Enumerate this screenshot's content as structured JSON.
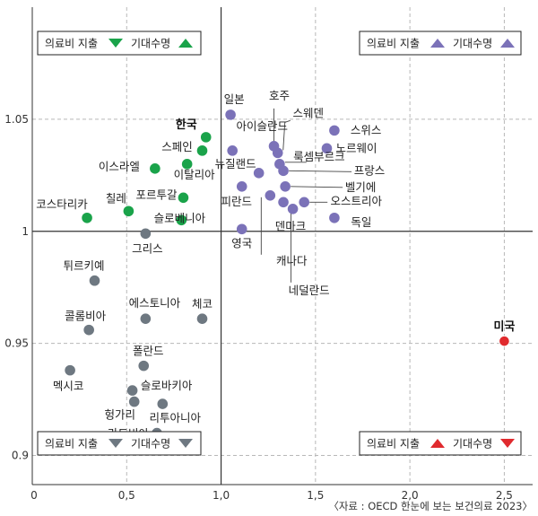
{
  "chart_data": {
    "type": "scatter",
    "xlim": [
      0,
      2.65
    ],
    "ylim": [
      0.887,
      1.1
    ],
    "x_ticks": [
      "0",
      "0,5",
      "1,0",
      "1,5",
      "2,0",
      "2,5"
    ],
    "x_tick_values": [
      0,
      0.5,
      1.0,
      1.5,
      2.0,
      2.5
    ],
    "y_ticks": [
      "0.9",
      "0.95",
      "1",
      "1.05"
    ],
    "y_tick_values": [
      0.9,
      0.95,
      1.0,
      1.05
    ],
    "center": {
      "x": 1.0,
      "y": 1.0
    },
    "grid": true,
    "colors": {
      "green": "#1aa34a",
      "purple": "#7b72b8",
      "gray": "#6e7881",
      "red": "#e02a2e",
      "grid": "#b8b8b8",
      "axis": "#333333"
    },
    "source": "〈자료 : OECD 한눈에 보는 보건의료 2023〉",
    "legends": [
      {
        "quadrant": "top-left",
        "spend_label": "의료비 지출",
        "spend_shape": "triangle-down",
        "life_label": "기대수명",
        "life_shape": "triangle-up",
        "color": "green"
      },
      {
        "quadrant": "top-right",
        "spend_label": "의료비 지출",
        "spend_shape": "triangle-up",
        "life_label": "기대수명",
        "life_shape": "triangle-up",
        "color": "purple"
      },
      {
        "quadrant": "bottom-left",
        "spend_label": "의료비 지출",
        "spend_shape": "triangle-down",
        "life_label": "기대수명",
        "life_shape": "triangle-down",
        "color": "gray"
      },
      {
        "quadrant": "bottom-right",
        "spend_label": "의료비 지출",
        "spend_shape": "triangle-up",
        "life_label": "기대수명",
        "life_shape": "triangle-down",
        "color": "red"
      }
    ],
    "series": [
      {
        "color": "green",
        "points": [
          {
            "label": "한국",
            "x": 0.92,
            "y": 1.042,
            "bold": true
          },
          {
            "label": "스페인",
            "x": 0.9,
            "y": 1.036
          },
          {
            "label": "이스라엘",
            "x": 0.65,
            "y": 1.028
          },
          {
            "label": "이탈리아",
            "x": 0.82,
            "y": 1.03
          },
          {
            "label": "포르투갈",
            "x": 0.8,
            "y": 1.015
          },
          {
            "label": "칠레",
            "x": 0.51,
            "y": 1.009
          },
          {
            "label": "코스타리카",
            "x": 0.29,
            "y": 1.006
          },
          {
            "label": "슬로베니아",
            "x": 0.79,
            "y": 1.005
          }
        ]
      },
      {
        "color": "purple",
        "points": [
          {
            "label": "일본",
            "x": 1.05,
            "y": 1.052
          },
          {
            "label": "호주",
            "x": 1.28,
            "y": 1.038
          },
          {
            "label": "스웨덴",
            "x": 1.3,
            "y": 1.035
          },
          {
            "label": "아이슬란드",
            "x": 1.06,
            "y": 1.036
          },
          {
            "label": "뉴질랜드",
            "x": 1.2,
            "y": 1.026
          },
          {
            "label": "룩셈부르크",
            "x": 1.31,
            "y": 1.03
          },
          {
            "label": "프랑스",
            "x": 1.33,
            "y": 1.027
          },
          {
            "label": "스위스",
            "x": 1.6,
            "y": 1.045
          },
          {
            "label": "노르웨이",
            "x": 1.56,
            "y": 1.037
          },
          {
            "label": "벨기에",
            "x": 1.34,
            "y": 1.02
          },
          {
            "label": "피란드",
            "x": 1.11,
            "y": 1.02
          },
          {
            "label": "캐나다",
            "x": 1.26,
            "y": 1.016
          },
          {
            "label": "덴마크",
            "x": 1.33,
            "y": 1.013
          },
          {
            "label": "네덜란드",
            "x": 1.38,
            "y": 1.01
          },
          {
            "label": "오스트리아",
            "x": 1.44,
            "y": 1.013
          },
          {
            "label": "독일",
            "x": 1.6,
            "y": 1.006
          },
          {
            "label": "영국",
            "x": 1.11,
            "y": 1.001
          }
        ]
      },
      {
        "color": "gray",
        "points": [
          {
            "label": "그리스",
            "x": 0.6,
            "y": 0.999
          },
          {
            "label": "튀르키예",
            "x": 0.33,
            "y": 0.978
          },
          {
            "label": "콜롬비아",
            "x": 0.3,
            "y": 0.956
          },
          {
            "label": "에스토니아",
            "x": 0.6,
            "y": 0.961
          },
          {
            "label": "체코",
            "x": 0.9,
            "y": 0.961
          },
          {
            "label": "폴란드",
            "x": 0.59,
            "y": 0.94
          },
          {
            "label": "멕시코",
            "x": 0.2,
            "y": 0.938
          },
          {
            "label": "슬로바키아",
            "x": 0.53,
            "y": 0.929
          },
          {
            "label": "헝가리",
            "x": 0.54,
            "y": 0.924
          },
          {
            "label": "리투아니아",
            "x": 0.69,
            "y": 0.923
          },
          {
            "label": "라트비아",
            "x": 0.66,
            "y": 0.91
          }
        ]
      },
      {
        "color": "red",
        "points": [
          {
            "label": "미국",
            "x": 2.5,
            "y": 0.951,
            "bold": true
          }
        ]
      }
    ]
  }
}
